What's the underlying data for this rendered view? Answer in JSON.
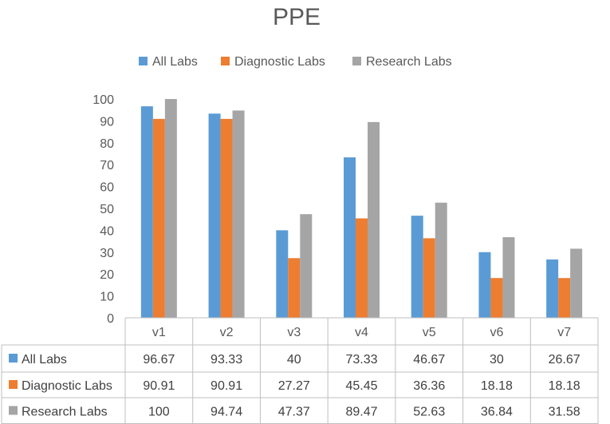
{
  "chart_data": {
    "type": "bar",
    "title": "PPE",
    "categories": [
      "v1",
      "v2",
      "v3",
      "v4",
      "v5",
      "v6",
      "v7"
    ],
    "series": [
      {
        "name": "All Labs",
        "color": "#5B9BD5",
        "values": [
          96.67,
          93.33,
          40,
          73.33,
          46.67,
          30,
          26.67
        ],
        "labels": [
          "96.67",
          "93.33",
          "40",
          "73.33",
          "46.67",
          "30",
          "26.67"
        ]
      },
      {
        "name": "Diagnostic Labs",
        "color": "#ED7D31",
        "values": [
          90.91,
          90.91,
          27.27,
          45.45,
          36.36,
          18.18,
          18.18
        ],
        "labels": [
          "90.91",
          "90.91",
          "27.27",
          "45.45",
          "36.36",
          "18.18",
          "18.18"
        ]
      },
      {
        "name": "Research Labs",
        "color": "#A5A5A5",
        "values": [
          100,
          94.74,
          47.37,
          89.47,
          52.63,
          36.84,
          31.58
        ],
        "labels": [
          "100",
          "94.74",
          "47.37",
          "89.47",
          "52.63",
          "36.84",
          "31.58"
        ]
      }
    ],
    "ylim": [
      0,
      100
    ],
    "yticks": [
      "0",
      "10",
      "20",
      "30",
      "40",
      "50",
      "60",
      "70",
      "80",
      "90",
      "100"
    ],
    "legend_position": "top",
    "data_table": true,
    "grid": false
  }
}
